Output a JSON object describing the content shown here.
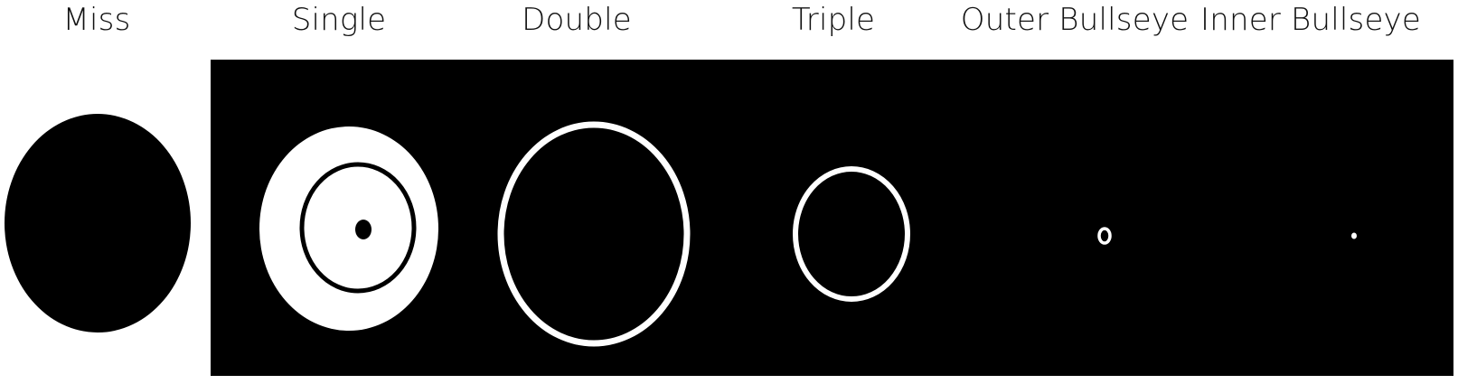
{
  "panels": [
    {
      "label": "Miss"
    },
    {
      "label": "Single"
    },
    {
      "label": "Double"
    },
    {
      "label": "Triple"
    },
    {
      "label": "Outer Bullseye"
    },
    {
      "label": "Inner Bullseye"
    }
  ],
  "colors": {
    "foreground": "#ffffff",
    "background": "#000000",
    "page": "#ffffff",
    "text": "#111111"
  }
}
